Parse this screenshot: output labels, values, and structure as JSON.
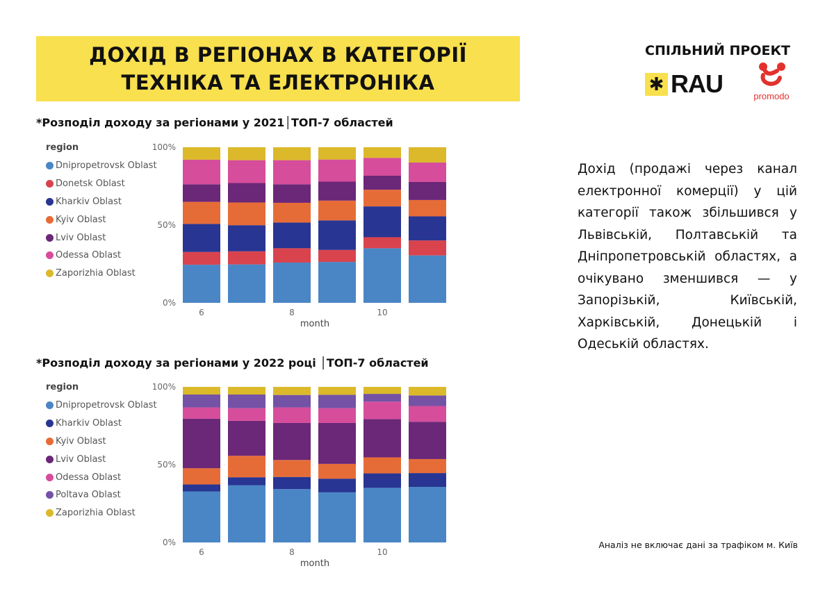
{
  "header": {
    "title_line1": "ДОХІД В РЕГІОНАХ В КАТЕГОРІЇ",
    "title_line2": "ТЕХНІКА ТА ЕЛЕКТРОНІКА"
  },
  "partners": {
    "label": "СПІЛЬНИЙ ПРОЕКТ",
    "rau": "RAU",
    "promodo": "promodo"
  },
  "description": "Дохід (продажі через канал електронної комерції) у цій категорії також збільшився у Львівській, Полтавській та Дніпропетровській областях, а очікувано зменшився — у Запорізькій, Київській, Харківській, Донецькій і Одеській областях.",
  "note": "Аналіз не включає дані за трафіком м. Київ",
  "chart_data": [
    {
      "type": "bar",
      "stacked": "100%",
      "title": "*Розподіл доходу за регіонами у 2021│ТОП-7 областей",
      "legend_title": "region",
      "xlabel": "month",
      "ylabel": "",
      "x": [
        6,
        7,
        8,
        9,
        10,
        11
      ],
      "x_ticks": [
        "6",
        "8",
        "10"
      ],
      "y_ticks": [
        "0%",
        "50%",
        "100%"
      ],
      "ylim": [
        0,
        100
      ],
      "series": [
        {
          "name": "Dniprop­etrovsk Oblast",
          "color": "#4a86c6",
          "values": [
            24.5,
            24.7,
            25.9,
            26.3,
            35.1,
            30.5
          ]
        },
        {
          "name": "Donetsk Oblast",
          "color": "#d9434e",
          "values": [
            8.2,
            8.4,
            9.2,
            7.7,
            7.1,
            9.6
          ]
        },
        {
          "name": "Kharkiv Oblast",
          "color": "#283592",
          "values": [
            18.0,
            16.8,
            16.5,
            19.0,
            19.8,
            15.5
          ]
        },
        {
          "name": "Kyiv Oblast",
          "color": "#e66c37",
          "values": [
            14.2,
            14.6,
            12.7,
            12.7,
            10.7,
            10.5
          ]
        },
        {
          "name": "Lviv Oblast",
          "color": "#6b2778",
          "values": [
            11.3,
            12.5,
            11.9,
            12.2,
            9.0,
            11.6
          ]
        },
        {
          "name": "Odessa Oblast",
          "color": "#d64d9b",
          "values": [
            15.8,
            14.7,
            15.5,
            14.2,
            11.5,
            12.5
          ]
        },
        {
          "name": "Zaporizhia Oblast",
          "color": "#dbb92a",
          "values": [
            8.0,
            8.3,
            8.3,
            7.9,
            6.8,
            9.8
          ]
        }
      ]
    },
    {
      "type": "bar",
      "stacked": "100%",
      "title": "*Розподіл доходу за регіонами у 2022 році │ТОП-7 областей",
      "legend_title": "region",
      "xlabel": "month",
      "ylabel": "",
      "x": [
        6,
        7,
        8,
        9,
        10,
        11
      ],
      "x_ticks": [
        "6",
        "8",
        "10"
      ],
      "y_ticks": [
        "0%",
        "50%",
        "100%"
      ],
      "ylim": [
        0,
        100
      ],
      "series": [
        {
          "name": "Dnipropetrovsk Oblast",
          "color": "#4a86c6",
          "values": [
            32.8,
            36.7,
            34.3,
            32.2,
            35.1,
            35.7
          ]
        },
        {
          "name": "Kharkiv Oblast",
          "color": "#283592",
          "values": [
            4.5,
            5.2,
            7.8,
            8.8,
            9.3,
            8.9
          ]
        },
        {
          "name": "Kyiv Oblast",
          "color": "#e66c37",
          "values": [
            10.4,
            13.8,
            10.9,
            9.5,
            10.3,
            9.0
          ]
        },
        {
          "name": "Lviv Oblast",
          "color": "#6b2778",
          "values": [
            31.8,
            22.5,
            23.8,
            26.3,
            24.6,
            24.0
          ]
        },
        {
          "name": "Odessa Oblast",
          "color": "#d64d9b",
          "values": [
            7.3,
            8.1,
            10.0,
            9.5,
            11.2,
            10.1
          ]
        },
        {
          "name": "Poltava Oblast",
          "color": "#7452a5",
          "values": [
            8.3,
            8.8,
            8.0,
            8.6,
            5.0,
            6.8
          ]
        },
        {
          "name": "Zaporizhia Oblast",
          "color": "#dbb92a",
          "values": [
            4.9,
            4.9,
            5.2,
            5.1,
            4.5,
            5.5
          ]
        }
      ]
    }
  ]
}
